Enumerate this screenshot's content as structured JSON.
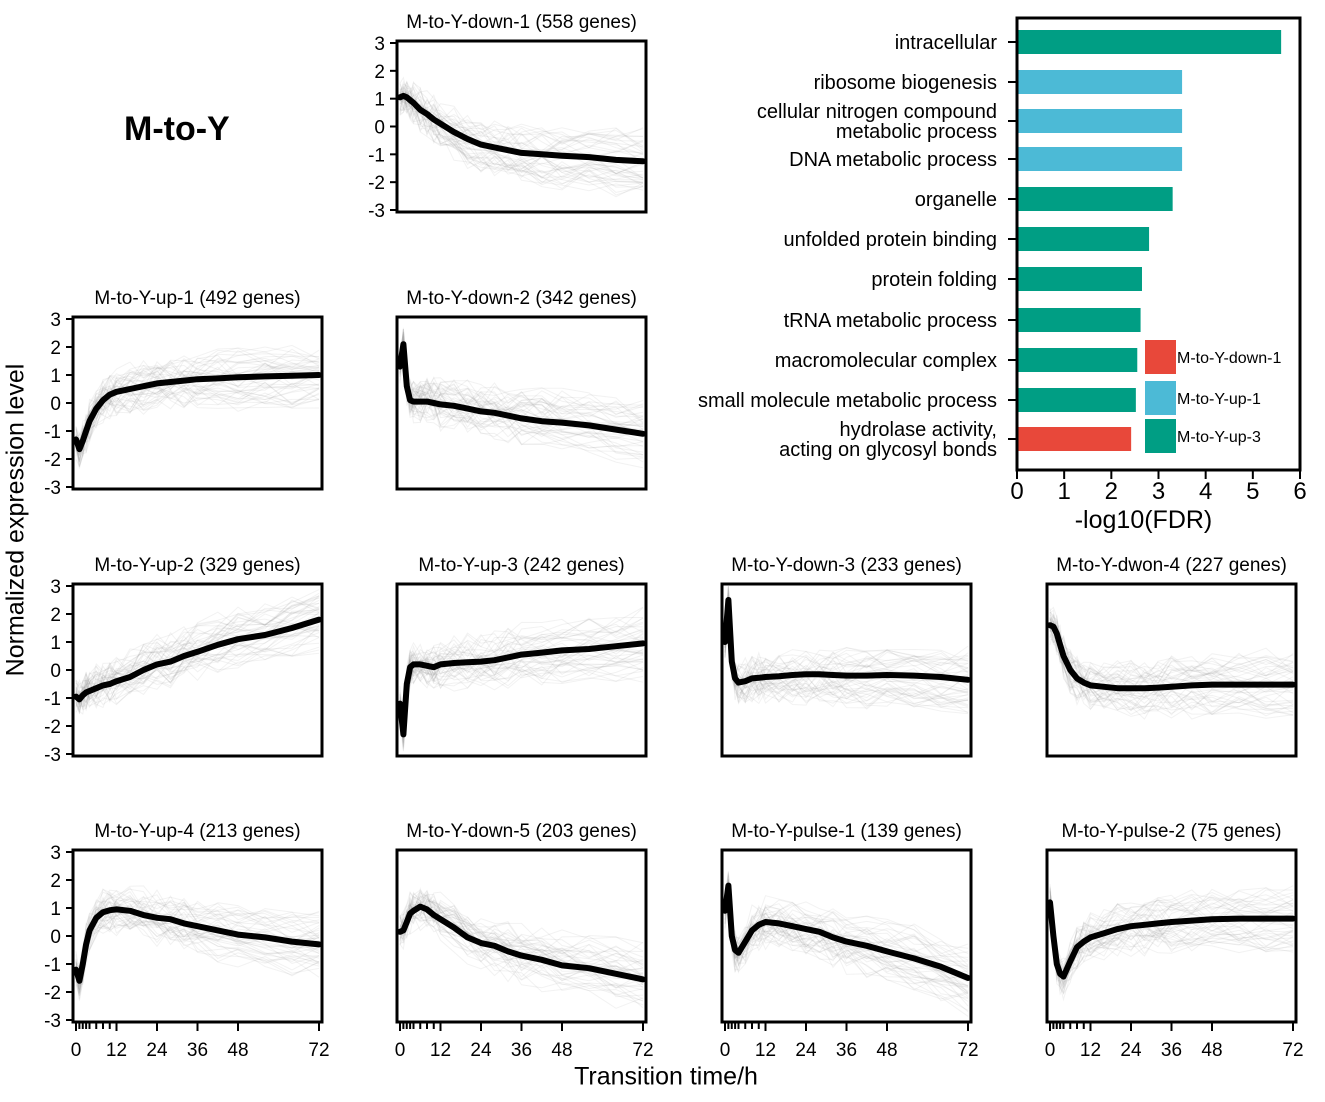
{
  "figure": {
    "heading": "M-to-Y",
    "y_axis_label": "Normalized expression level",
    "x_axis_label": "Transition time/h",
    "colors": {
      "mean_line": "#000000",
      "background_lines": "#9a9a9a"
    }
  },
  "chart_data": [
    {
      "type": "line",
      "title": "M-to-Y-down-1 (558 genes)",
      "ylim": [
        -3,
        3
      ],
      "yticks": [
        "3",
        "2",
        "1",
        "0",
        "-1",
        "-2",
        "-3"
      ],
      "xlim": [
        0,
        72
      ],
      "xticks": [],
      "x": [
        0,
        1,
        2,
        3,
        4,
        6,
        8,
        10,
        12,
        16,
        20,
        24,
        28,
        32,
        36,
        42,
        48,
        56,
        64,
        72
      ],
      "series": [
        {
          "name": "mean",
          "values": [
            1.05,
            1.1,
            1.05,
            0.95,
            0.85,
            0.6,
            0.45,
            0.25,
            0.1,
            -0.2,
            -0.45,
            -0.65,
            -0.75,
            -0.85,
            -0.95,
            -1.0,
            -1.05,
            -1.1,
            -1.2,
            -1.25
          ]
        }
      ]
    },
    {
      "type": "line",
      "title": "M-to-Y-up-1 (492 genes)",
      "ylim": [
        -3,
        3
      ],
      "yticks": [
        "3",
        "2",
        "1",
        "0",
        "-1",
        "-2",
        "-3"
      ],
      "xlim": [
        0,
        72
      ],
      "xticks": [],
      "x": [
        0,
        1,
        2,
        3,
        4,
        6,
        8,
        10,
        12,
        16,
        20,
        24,
        28,
        32,
        36,
        42,
        48,
        56,
        64,
        72
      ],
      "series": [
        {
          "name": "mean",
          "values": [
            -1.3,
            -1.65,
            -1.35,
            -1.0,
            -0.65,
            -0.2,
            0.1,
            0.3,
            0.4,
            0.5,
            0.6,
            0.7,
            0.75,
            0.8,
            0.85,
            0.88,
            0.92,
            0.95,
            0.97,
            1.0
          ]
        }
      ]
    },
    {
      "type": "line",
      "title": "M-to-Y-down-2 (342 genes)",
      "ylim": [
        -3,
        3
      ],
      "yticks": [],
      "xlim": [
        0,
        72
      ],
      "xticks": [],
      "x": [
        0,
        1,
        2,
        3,
        4,
        6,
        8,
        10,
        12,
        16,
        20,
        24,
        28,
        32,
        36,
        42,
        48,
        56,
        64,
        72
      ],
      "series": [
        {
          "name": "mean",
          "values": [
            1.3,
            2.1,
            0.6,
            0.1,
            0.05,
            0.05,
            0.05,
            0.0,
            -0.05,
            -0.1,
            -0.2,
            -0.3,
            -0.35,
            -0.45,
            -0.55,
            -0.65,
            -0.7,
            -0.8,
            -0.95,
            -1.1
          ]
        }
      ]
    },
    {
      "type": "line",
      "title": "M-to-Y-up-2 (329 genes)",
      "ylim": [
        -3,
        3
      ],
      "yticks": [
        "3",
        "2",
        "1",
        "0",
        "-1",
        "-2",
        "-3"
      ],
      "xlim": [
        0,
        72
      ],
      "xticks": [],
      "x": [
        0,
        1,
        2,
        3,
        4,
        6,
        8,
        10,
        12,
        16,
        20,
        24,
        28,
        32,
        36,
        42,
        48,
        56,
        64,
        72
      ],
      "series": [
        {
          "name": "mean",
          "values": [
            -0.95,
            -1.05,
            -0.9,
            -0.8,
            -0.75,
            -0.65,
            -0.55,
            -0.5,
            -0.4,
            -0.25,
            0.0,
            0.2,
            0.3,
            0.5,
            0.65,
            0.9,
            1.1,
            1.25,
            1.5,
            1.8
          ]
        }
      ]
    },
    {
      "type": "line",
      "title": "M-to-Y-up-3 (242 genes)",
      "ylim": [
        -3,
        3
      ],
      "yticks": [],
      "xlim": [
        0,
        72
      ],
      "xticks": [],
      "x": [
        0,
        1,
        2,
        3,
        4,
        6,
        8,
        10,
        12,
        16,
        20,
        24,
        28,
        32,
        36,
        42,
        48,
        56,
        64,
        72
      ],
      "series": [
        {
          "name": "mean",
          "values": [
            -1.2,
            -2.3,
            -0.5,
            0.1,
            0.2,
            0.2,
            0.15,
            0.1,
            0.2,
            0.25,
            0.28,
            0.3,
            0.35,
            0.45,
            0.55,
            0.62,
            0.7,
            0.75,
            0.85,
            0.95
          ]
        }
      ]
    },
    {
      "type": "line",
      "title": "M-to-Y-down-3 (233 genes)",
      "ylim": [
        -3,
        3
      ],
      "yticks": [],
      "xlim": [
        0,
        72
      ],
      "xticks": [],
      "x": [
        0,
        1,
        2,
        3,
        4,
        6,
        8,
        10,
        12,
        16,
        20,
        24,
        28,
        32,
        36,
        42,
        48,
        56,
        64,
        72
      ],
      "series": [
        {
          "name": "mean",
          "values": [
            1.0,
            2.5,
            0.3,
            -0.3,
            -0.45,
            -0.4,
            -0.3,
            -0.28,
            -0.25,
            -0.22,
            -0.18,
            -0.15,
            -0.15,
            -0.18,
            -0.2,
            -0.2,
            -0.18,
            -0.2,
            -0.25,
            -0.35
          ]
        }
      ]
    },
    {
      "type": "line",
      "title": "M-to-Y-dwon-4 (227 genes)",
      "ylim": [
        -3,
        3
      ],
      "yticks": [],
      "xlim": [
        0,
        72
      ],
      "xticks": [],
      "x": [
        0,
        1,
        2,
        3,
        4,
        6,
        8,
        10,
        12,
        16,
        20,
        24,
        28,
        32,
        36,
        42,
        48,
        56,
        64,
        72
      ],
      "series": [
        {
          "name": "mean",
          "values": [
            1.6,
            1.55,
            1.3,
            0.9,
            0.5,
            0.0,
            -0.3,
            -0.45,
            -0.55,
            -0.6,
            -0.65,
            -0.65,
            -0.65,
            -0.63,
            -0.6,
            -0.55,
            -0.52,
            -0.52,
            -0.52,
            -0.52
          ]
        }
      ]
    },
    {
      "type": "line",
      "title": "M-to-Y-up-4 (213 genes)",
      "ylim": [
        -3,
        3
      ],
      "yticks": [
        "3",
        "2",
        "1",
        "0",
        "-1",
        "-2",
        "-3"
      ],
      "xlim": [
        0,
        72
      ],
      "xticks": [
        "0",
        "12",
        "24",
        "36",
        "48",
        "72"
      ],
      "x": [
        0,
        1,
        2,
        3,
        4,
        6,
        8,
        10,
        12,
        16,
        20,
        24,
        28,
        32,
        36,
        42,
        48,
        56,
        64,
        72
      ],
      "series": [
        {
          "name": "mean",
          "values": [
            -1.2,
            -1.6,
            -1.0,
            -0.3,
            0.2,
            0.65,
            0.85,
            0.92,
            0.95,
            0.9,
            0.75,
            0.65,
            0.6,
            0.45,
            0.35,
            0.2,
            0.05,
            -0.05,
            -0.2,
            -0.3
          ]
        }
      ]
    },
    {
      "type": "line",
      "title": "M-to-Y-down-5 (203 genes)",
      "ylim": [
        -3,
        3
      ],
      "yticks": [],
      "xlim": [
        0,
        72
      ],
      "xticks": [
        "0",
        "12",
        "24",
        "36",
        "48",
        "72"
      ],
      "x": [
        0,
        1,
        2,
        3,
        4,
        6,
        8,
        10,
        12,
        16,
        20,
        24,
        28,
        32,
        36,
        42,
        48,
        56,
        64,
        72
      ],
      "series": [
        {
          "name": "mean",
          "values": [
            0.15,
            0.2,
            0.5,
            0.8,
            0.9,
            1.05,
            0.95,
            0.75,
            0.6,
            0.3,
            -0.05,
            -0.25,
            -0.35,
            -0.55,
            -0.7,
            -0.85,
            -1.05,
            -1.15,
            -1.35,
            -1.55
          ]
        }
      ]
    },
    {
      "type": "line",
      "title": "M-to-Y-pulse-1 (139 genes)",
      "ylim": [
        -3,
        3
      ],
      "yticks": [],
      "xlim": [
        0,
        72
      ],
      "xticks": [
        "0",
        "12",
        "24",
        "36",
        "48",
        "72"
      ],
      "x": [
        0,
        1,
        2,
        3,
        4,
        6,
        8,
        10,
        12,
        16,
        20,
        24,
        28,
        32,
        36,
        42,
        48,
        56,
        64,
        72
      ],
      "series": [
        {
          "name": "mean",
          "values": [
            0.9,
            1.8,
            0.0,
            -0.5,
            -0.6,
            -0.2,
            0.2,
            0.4,
            0.5,
            0.45,
            0.35,
            0.25,
            0.15,
            -0.05,
            -0.2,
            -0.35,
            -0.55,
            -0.8,
            -1.1,
            -1.5
          ]
        }
      ]
    },
    {
      "type": "line",
      "title": "M-to-Y-pulse-2 (75 genes)",
      "ylim": [
        -3,
        3
      ],
      "yticks": [],
      "xlim": [
        0,
        72
      ],
      "xticks": [
        "0",
        "12",
        "24",
        "36",
        "48",
        "72"
      ],
      "x": [
        0,
        1,
        2,
        3,
        4,
        6,
        8,
        10,
        12,
        16,
        20,
        24,
        28,
        32,
        36,
        42,
        48,
        56,
        64,
        72
      ],
      "series": [
        {
          "name": "mean",
          "values": [
            1.2,
            0.0,
            -1.0,
            -1.35,
            -1.45,
            -0.9,
            -0.4,
            -0.2,
            -0.05,
            0.1,
            0.25,
            0.35,
            0.4,
            0.45,
            0.5,
            0.55,
            0.6,
            0.62,
            0.62,
            0.62
          ]
        }
      ]
    },
    {
      "type": "bar",
      "orientation": "horizontal",
      "xlabel": "-log10(FDR)",
      "xlim": [
        0,
        6
      ],
      "xticks": [
        "0",
        "1",
        "2",
        "3",
        "4",
        "5",
        "6"
      ],
      "categories": [
        [
          "intracellular"
        ],
        [
          "ribosome biogenesis"
        ],
        [
          "cellular nitrogen compound",
          "metabolic process"
        ],
        [
          "DNA metabolic process"
        ],
        [
          "organelle"
        ],
        [
          "unfolded protein binding"
        ],
        [
          "protein folding"
        ],
        [
          "tRNA metabolic process"
        ],
        [
          "macromolecular complex"
        ],
        [
          "small molecule metabolic process"
        ],
        [
          "hydrolase activity,",
          "acting on glycosyl bonds"
        ]
      ],
      "values": [
        5.6,
        3.5,
        3.5,
        3.5,
        3.3,
        2.8,
        2.65,
        2.62,
        2.55,
        2.52,
        2.42
      ],
      "bar_groups": [
        "M-to-Y-up-3",
        "M-to-Y-up-1",
        "M-to-Y-up-1",
        "M-to-Y-up-1",
        "M-to-Y-up-3",
        "M-to-Y-up-3",
        "M-to-Y-up-3",
        "M-to-Y-up-3",
        "M-to-Y-up-3",
        "M-to-Y-up-3",
        "M-to-Y-down-1"
      ],
      "legend": [
        {
          "label": "M-to-Y-down-1",
          "color": "#e8483a"
        },
        {
          "label": "M-to-Y-up-1",
          "color": "#4cbad6"
        },
        {
          "label": "M-to-Y-up-3",
          "color": "#009e84"
        }
      ],
      "legend_position": "bottom-right inside"
    }
  ]
}
